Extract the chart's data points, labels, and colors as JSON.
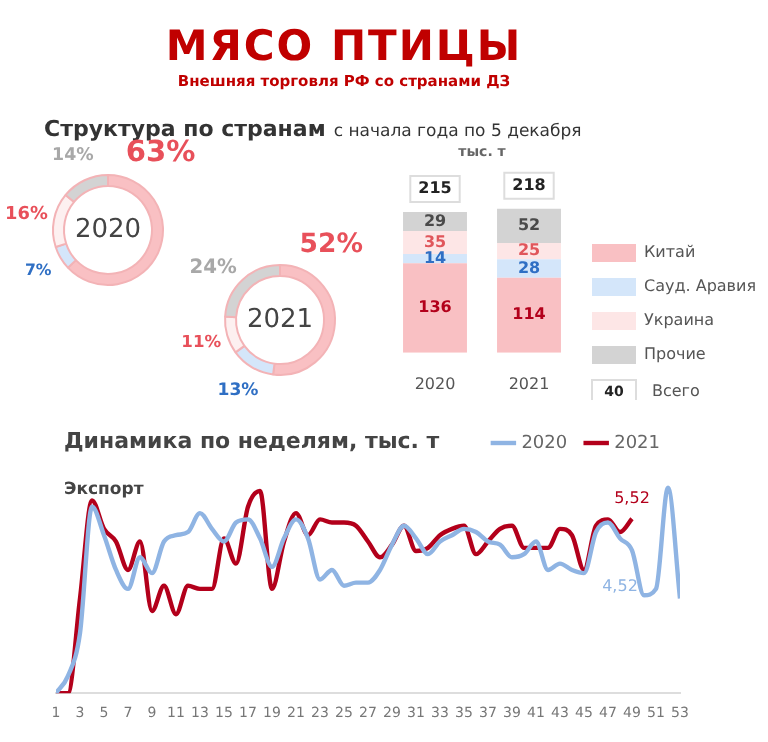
{
  "chart_data": [
    {
      "type": "donut",
      "title": "МЯСО ПТИЦЫ",
      "subtitle": "Внешняя торговля РФ со странами ДЗ",
      "annotations": [
        "Структура по странам",
        "с начала года по 5 декабря",
        "2020"
      ],
      "values": [
        63,
        7,
        16,
        14
      ],
      "colors": [
        "#f9c0c3",
        "#d4e6fa",
        "#fdf0f0",
        "#d3d3d3"
      ],
      "value_labels": [
        "63%",
        "7%",
        "16%",
        "14%"
      ]
    },
    {
      "type": "donut",
      "annotations": [
        "2021"
      ],
      "values": [
        52,
        13,
        11,
        24
      ],
      "colors": [
        "#f9c0c3",
        "#d4e6fa",
        "#fdf0f0",
        "#d3d3d3"
      ],
      "value_labels": [
        "52%",
        "13%",
        "11%",
        "24%"
      ]
    },
    {
      "type": "bar",
      "stacked": true,
      "ylabel": "тыс. т",
      "categories": [
        "2020",
        "2021"
      ],
      "series": [
        {
          "name": "Китай",
          "color": "#f9c0c3",
          "values": [
            136,
            114
          ]
        },
        {
          "name": "Сауд. Аравия",
          "color": "#d4e6fa",
          "values": [
            14,
            28
          ]
        },
        {
          "name": "Украина",
          "color": "#fde6e6",
          "values": [
            35,
            25
          ]
        },
        {
          "name": "Прочие",
          "color": "#d3d3d3",
          "values": [
            29,
            52
          ]
        }
      ],
      "ylim": [
        0,
        220
      ],
      "data_labels": true,
      "totals": [
        "215",
        "218"
      ],
      "annotations": [
        "40",
        "Всего"
      ],
      "legend": "right",
      "tick_labels": "x"
    },
    {
      "type": "line",
      "title": "Динамика по неделям, тыс. т",
      "subtitle": "Экспорт",
      "xlim": [
        1,
        53
      ],
      "xticks": [
        1,
        3,
        5,
        7,
        9,
        11,
        13,
        15,
        17,
        19,
        21,
        23,
        25,
        27,
        29,
        31,
        33,
        35,
        37,
        39,
        41,
        43,
        45,
        47,
        49,
        51,
        53
      ],
      "tick_labels": "x",
      "legend": "top right",
      "marker": "none",
      "line_style": "solid",
      "series": [
        {
          "name": "2020",
          "color": "#8fb4e3",
          "x": [
            1,
            2,
            3,
            4,
            5,
            6,
            7,
            8,
            9,
            10,
            11,
            12,
            13,
            14,
            15,
            16,
            17,
            18,
            19,
            20,
            21,
            22,
            23,
            24,
            25,
            26,
            27,
            28,
            29,
            30,
            31,
            32,
            33,
            34,
            35,
            36,
            37,
            38,
            39,
            40,
            41,
            42,
            43,
            44,
            45,
            46,
            47,
            48,
            49,
            50,
            51,
            52,
            53
          ],
          "values": [
            0,
            0.55,
            1.9,
            5.9,
            5.0,
            3.9,
            3.3,
            4.3,
            3.8,
            4.8,
            5.0,
            5.1,
            5.7,
            5.2,
            4.8,
            5.4,
            5.5,
            4.9,
            4.0,
            4.9,
            5.5,
            4.9,
            3.6,
            3.9,
            3.4,
            3.5,
            3.5,
            3.9,
            4.7,
            5.3,
            4.9,
            4.4,
            4.8,
            5.0,
            5.2,
            5.1,
            4.8,
            4.7,
            4.3,
            4.4,
            4.8,
            3.9,
            4.1,
            3.9,
            3.8,
            5.1,
            5.4,
            4.9,
            4.52,
            3.1,
            3.3,
            6.5,
            3.0
          ],
          "value_labels": [
            null,
            null,
            null,
            null,
            null,
            null,
            null,
            null,
            null,
            null,
            null,
            null,
            null,
            null,
            null,
            null,
            null,
            null,
            null,
            null,
            null,
            null,
            null,
            null,
            null,
            null,
            null,
            null,
            null,
            null,
            null,
            null,
            null,
            null,
            null,
            null,
            null,
            null,
            null,
            null,
            null,
            null,
            null,
            null,
            null,
            null,
            null,
            null,
            "4,52",
            null,
            null,
            null,
            null
          ]
        },
        {
          "name": "2021",
          "color": "#b3001b",
          "x": [
            1,
            2,
            3,
            4,
            5,
            6,
            7,
            8,
            9,
            10,
            11,
            12,
            13,
            14,
            15,
            16,
            17,
            18,
            19,
            20,
            21,
            22,
            23,
            24,
            25,
            26,
            27,
            28,
            29,
            30,
            31,
            32,
            33,
            34,
            35,
            36,
            37,
            38,
            39,
            40,
            41,
            42,
            43,
            44,
            45,
            46,
            47,
            48,
            49
          ],
          "values": [
            0,
            0,
            3.0,
            6.1,
            5.2,
            4.8,
            3.9,
            4.8,
            2.6,
            3.4,
            2.5,
            3.4,
            3.3,
            3.3,
            4.9,
            4.1,
            5.9,
            6.4,
            3.3,
            4.8,
            5.7,
            5.0,
            5.5,
            5.4,
            5.4,
            5.3,
            4.8,
            4.3,
            4.7,
            5.3,
            4.5,
            4.6,
            5.0,
            5.2,
            5.3,
            4.4,
            4.8,
            5.2,
            5.3,
            4.6,
            4.6,
            4.6,
            5.2,
            5.0,
            3.9,
            5.3,
            5.5,
            5.1,
            5.52
          ],
          "value_labels": [
            null,
            null,
            null,
            null,
            null,
            null,
            null,
            null,
            null,
            null,
            null,
            null,
            null,
            null,
            null,
            null,
            null,
            null,
            null,
            null,
            null,
            null,
            null,
            null,
            null,
            null,
            null,
            null,
            null,
            null,
            null,
            null,
            null,
            null,
            null,
            null,
            null,
            null,
            null,
            null,
            null,
            null,
            null,
            null,
            null,
            null,
            null,
            null,
            "5,52"
          ]
        }
      ]
    }
  ]
}
